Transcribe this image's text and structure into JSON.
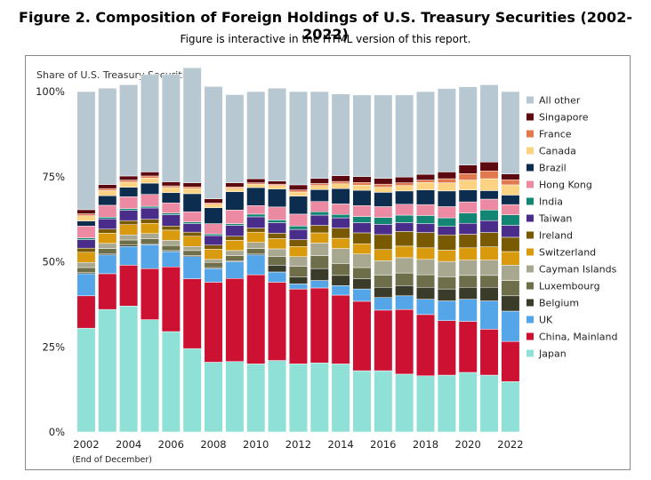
{
  "figure": {
    "title": "Figure 2. Composition of Foreign Holdings of U.S. Treasury Securities (2002-2022)",
    "subtitle": "Figure is interactive in the HTML version of this report."
  },
  "chart_data": {
    "type": "bar",
    "stacked": true,
    "title": "",
    "ylabel": "Share of U.S. Treasury Securities",
    "xlabel": "",
    "x_note": "(End of December)",
    "categories": [
      "2002",
      "2003",
      "2004",
      "2005",
      "2006",
      "2007",
      "2008",
      "2009",
      "2010",
      "2011",
      "2012",
      "2013",
      "2014",
      "2015",
      "2016",
      "2017",
      "2018",
      "2019",
      "2020",
      "2021",
      "2022"
    ],
    "x_tick_labels": [
      "2002",
      "2004",
      "2006",
      "2008",
      "2010",
      "2012",
      "2014",
      "2016",
      "2018",
      "2020",
      "2022"
    ],
    "y_ticks": [
      "0%",
      "25%",
      "50%",
      "75%",
      "100%"
    ],
    "ylim": [
      0,
      100
    ],
    "grid": false,
    "legend_position": "right",
    "series": [
      {
        "name": "Japan",
        "color": "#8fe0d6",
        "values": [
          30.5,
          36,
          37,
          33,
          29.5,
          24.5,
          20.5,
          20.7,
          20,
          21,
          20,
          20.3,
          20,
          18,
          18,
          17,
          16.5,
          16.7,
          17.5,
          16.7,
          14.8
        ]
      },
      {
        "name": "China, Mainland",
        "color": "#cc1133",
        "values": [
          9.5,
          10.5,
          12,
          15,
          19,
          20.5,
          23.5,
          24.4,
          26.2,
          23,
          22,
          22,
          20.2,
          20.4,
          17.8,
          19,
          18,
          16,
          15,
          13.5,
          11.8
        ]
      },
      {
        "name": "UK",
        "color": "#55a6e8",
        "values": [
          6.5,
          5.5,
          5.5,
          7,
          4.5,
          6.5,
          4,
          4.9,
          5.8,
          3,
          1.5,
          2.2,
          2.8,
          3.6,
          3.7,
          4,
          4.5,
          5.8,
          6.5,
          8.3,
          8.9
        ]
      },
      {
        "name": "Belgium",
        "color": "#3b3b2a",
        "values": [
          0.3,
          0.4,
          0.4,
          0.3,
          0.3,
          0.3,
          0.3,
          0.3,
          0.4,
          2,
          2,
          3.5,
          3,
          3,
          3,
          3,
          3.5,
          3.5,
          3.5,
          4,
          4.5
        ]
      },
      {
        "name": "Luxembourg",
        "color": "#6e6e4a",
        "values": [
          1.5,
          1.5,
          1.5,
          1.5,
          1.5,
          1.5,
          1.5,
          1.5,
          1.5,
          2.5,
          3.2,
          3.8,
          3.5,
          3.3,
          3.6,
          3.7,
          3.7,
          3.6,
          3.5,
          3.5,
          4.5
        ]
      },
      {
        "name": "Cayman Islands",
        "color": "#a8a890",
        "values": [
          1.5,
          1.5,
          1.5,
          1.5,
          1.5,
          1.2,
          0.9,
          1.5,
          1.8,
          2.3,
          2.8,
          3.7,
          4.4,
          4,
          4.2,
          4.5,
          4.5,
          4.5,
          4.5,
          4.5,
          4.5
        ]
      },
      {
        "name": "Switzerland",
        "color": "#d99a0d",
        "values": [
          3,
          3,
          3,
          3,
          3,
          3,
          3,
          3,
          3,
          3,
          3,
          3,
          3,
          3,
          3.3,
          3.4,
          3.4,
          3.3,
          3.6,
          3.9,
          4
        ]
      },
      {
        "name": "Ireland",
        "color": "#7a5a00",
        "values": [
          1.2,
          1.2,
          1.2,
          1.2,
          1.2,
          1.2,
          1.2,
          1.2,
          1.2,
          1.6,
          2,
          2.2,
          3,
          3.2,
          4.4,
          4.3,
          4.5,
          4.5,
          4,
          4.2,
          4.2
        ]
      },
      {
        "name": "Taiwan",
        "color": "#4a2d8a",
        "values": [
          2.5,
          3,
          3,
          3.3,
          3.3,
          2.5,
          2.8,
          3.2,
          3.3,
          3.1,
          3,
          3,
          3,
          3,
          3,
          2.6,
          2.6,
          2.5,
          3.2,
          3.5,
          3.5
        ]
      },
      {
        "name": "India",
        "color": "#128573",
        "values": [
          0.5,
          0.5,
          0.5,
          0.5,
          0.5,
          0.5,
          0.5,
          0.5,
          0.8,
          0.8,
          1,
          1,
          1,
          1.8,
          2,
          2.2,
          2.4,
          2.5,
          3,
          3.1,
          3.1
        ]
      },
      {
        "name": "Hong Kong",
        "color": "#ec8aa4",
        "values": [
          3.5,
          3.5,
          3.5,
          3.5,
          3,
          3,
          3,
          4,
          2.5,
          3.8,
          3.5,
          3,
          3.1,
          3.2,
          3.2,
          3.2,
          3.2,
          3.3,
          3.3,
          3.2,
          3
        ]
      },
      {
        "name": "Brazil",
        "color": "#0d2d4e",
        "values": [
          1.5,
          2.8,
          2.8,
          3.3,
          3,
          5.3,
          4.7,
          5.4,
          5.3,
          5.3,
          5.3,
          3.5,
          4.5,
          4.5,
          4.2,
          3.9,
          4.3,
          4.6,
          3.5,
          2.5,
          2.8
        ]
      },
      {
        "name": "Canada",
        "color": "#fcd283",
        "values": [
          1.5,
          1.5,
          1.5,
          1.5,
          1.5,
          1.5,
          1,
          1,
          1,
          1,
          1.2,
          1.2,
          1.4,
          1.5,
          1.5,
          1.6,
          2.2,
          2.4,
          2.9,
          3.5,
          3
        ]
      },
      {
        "name": "France",
        "color": "#e07a4e",
        "values": [
          0.6,
          0.6,
          0.6,
          0.6,
          0.5,
          0.5,
          0.4,
          0.4,
          0.4,
          0.4,
          0.6,
          0.6,
          0.7,
          0.8,
          0.9,
          0.8,
          0.7,
          1.2,
          1.9,
          2.3,
          1.5
        ]
      },
      {
        "name": "Singapore",
        "color": "#5c0a10",
        "values": [
          1.2,
          1.2,
          1.2,
          1.2,
          1.2,
          1.2,
          1.2,
          1.2,
          1.2,
          0.9,
          1.5,
          1.5,
          1.7,
          1.7,
          1.7,
          1.7,
          1.7,
          2,
          2.5,
          2.6,
          1.7
        ]
      },
      {
        "name": "All other",
        "color": "#b8c8d2",
        "values": [
          34.7,
          28.3,
          26.8,
          28.6,
          31.5,
          33.8,
          33,
          25.9,
          25.6,
          27.3,
          27.4,
          25.5,
          24,
          24,
          24.5,
          24.1,
          24.3,
          24.5,
          23,
          22.7,
          24.2
        ]
      }
    ]
  }
}
